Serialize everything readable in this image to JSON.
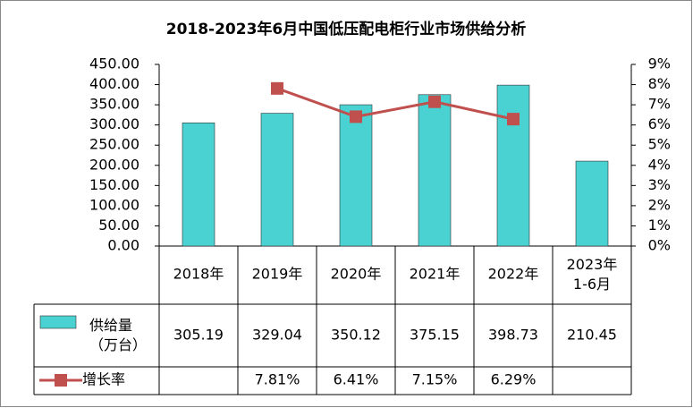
{
  "chart_data": {
    "type": "bar",
    "title": "2018-2023年6月中国低压配电柜行业市场供给分析",
    "categories": [
      "2018年",
      "2019年",
      "2020年",
      "2021年",
      "2022年",
      "2023年\n1-6月"
    ],
    "series": [
      {
        "name": "供给量\n（万台）",
        "type": "bar",
        "color": "#4ad2d2",
        "values": [
          305.19,
          329.04,
          350.12,
          375.15,
          398.73,
          210.45
        ]
      },
      {
        "name": "增长率",
        "type": "line",
        "axis": "y2",
        "color": "#c0504d",
        "values": [
          null,
          7.81,
          6.41,
          7.15,
          6.29,
          null
        ],
        "value_labels": [
          null,
          "7.81%",
          "6.41%",
          "7.15%",
          "6.29%",
          null
        ]
      }
    ],
    "ylim": [
      0,
      450
    ],
    "yticks": [
      {
        "value": 0,
        "label": "0.00"
      },
      {
        "value": 50,
        "label": "50.00"
      },
      {
        "value": 100,
        "label": "100.00"
      },
      {
        "value": 150,
        "label": "150.00"
      },
      {
        "value": 200,
        "label": "200.00"
      },
      {
        "value": 250,
        "label": "250.00"
      },
      {
        "value": 300,
        "label": "300.00"
      },
      {
        "value": 350,
        "label": "350.00"
      },
      {
        "value": 400,
        "label": "400.00"
      },
      {
        "value": 450,
        "label": "450.00"
      }
    ],
    "y2lim": [
      0,
      9
    ],
    "y2ticks": [
      {
        "value": 0,
        "label": "0%"
      },
      {
        "value": 1,
        "label": "1%"
      },
      {
        "value": 2,
        "label": "2%"
      },
      {
        "value": 3,
        "label": "3%"
      },
      {
        "value": 4,
        "label": "4%"
      },
      {
        "value": 5,
        "label": "5%"
      },
      {
        "value": 6,
        "label": "6%"
      },
      {
        "value": 7,
        "label": "7%"
      },
      {
        "value": 8,
        "label": "8%"
      },
      {
        "value": 9,
        "label": "9%"
      }
    ],
    "grid": false,
    "data_table": true
  }
}
